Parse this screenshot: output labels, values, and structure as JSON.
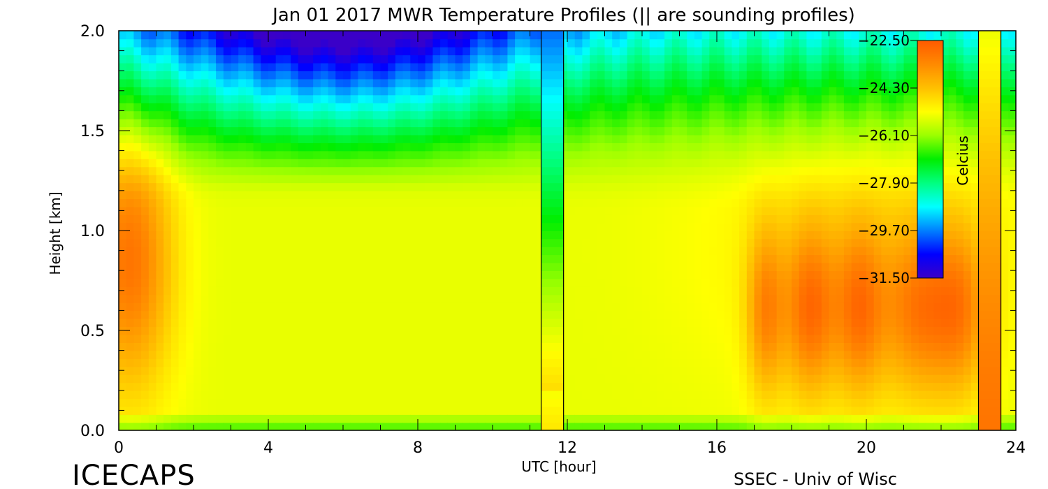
{
  "chart_data": {
    "type": "heatmap",
    "title": "Jan 01 2017 MWR Temperature Profiles (|| are sounding profiles)",
    "xlabel": "UTC [hour]",
    "ylabel": "Height [km]",
    "xlim": [
      0,
      24
    ],
    "ylim": [
      0,
      2.0
    ],
    "x_ticks": [
      "0",
      "4",
      "8",
      "12",
      "16",
      "20",
      "24"
    ],
    "y_ticks": [
      "0.0",
      "0.5",
      "1.0",
      "1.5",
      "2.0"
    ],
    "colorbar": {
      "label": "Celcius",
      "range": [
        -31.5,
        -22.5
      ],
      "ticks": [
        "-22.50",
        "-24.30",
        "-26.10",
        "-27.90",
        "-29.70",
        "-31.50"
      ],
      "colormap": [
        "#3a00c8",
        "#0000ff",
        "#0080ff",
        "#00ffff",
        "#00ff80",
        "#00ee00",
        "#9aff00",
        "#ffff00",
        "#ffc000",
        "#ff8a00",
        "#ff5a00"
      ]
    },
    "sounding_times_hour": [
      11.3,
      11.9,
      23.0,
      23.6
    ],
    "brand": "ICECAPS",
    "credit": "SSEC - Univ of Wisc"
  }
}
